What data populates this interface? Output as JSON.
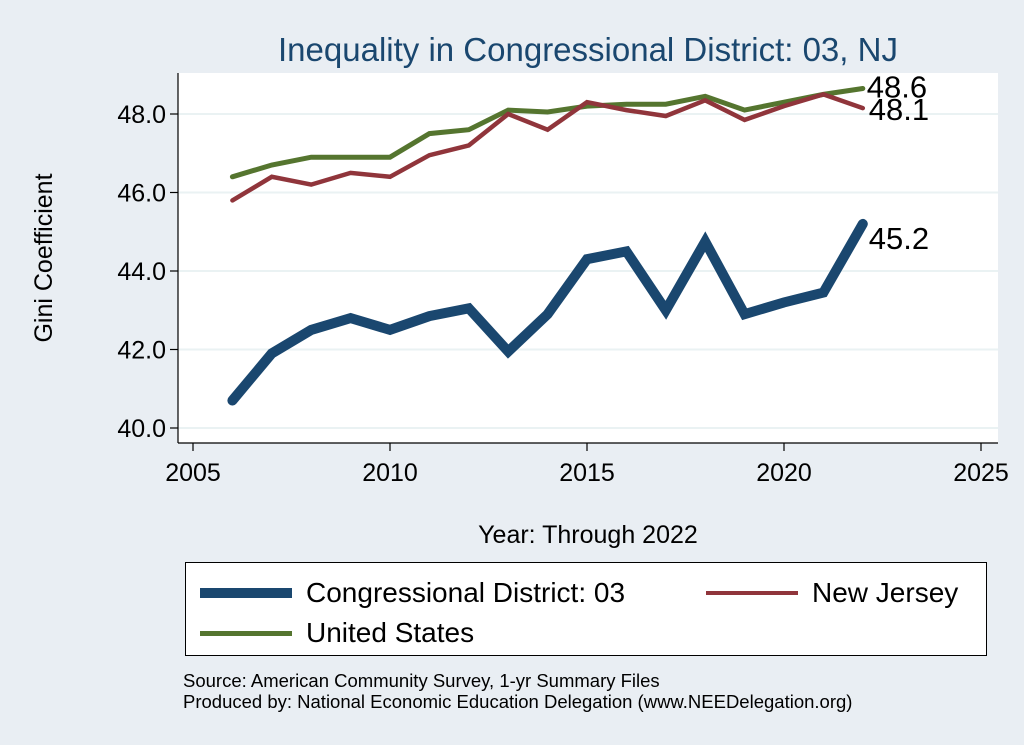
{
  "chart_data": {
    "type": "line",
    "title": "Inequality in Congressional District:  03, NJ",
    "xlabel": "Year: Through 2022",
    "ylabel": "Gini Coefficient",
    "xlim": [
      2005,
      2025
    ],
    "ylim": [
      39.8,
      49.0
    ],
    "xticks": [
      2005,
      2010,
      2015,
      2020,
      2025
    ],
    "yticks": [
      40.0,
      42.0,
      44.0,
      46.0,
      48.0
    ],
    "ytick_labels": [
      "40.0",
      "42.0",
      "44.0",
      "46.0",
      "48.0"
    ],
    "grid": "horizontal",
    "legend_position": "bottom",
    "x": [
      2006,
      2007,
      2008,
      2009,
      2010,
      2011,
      2012,
      2013,
      2014,
      2015,
      2016,
      2017,
      2018,
      2019,
      2020,
      2021,
      2022
    ],
    "series": [
      {
        "name": "Congressional District:  03",
        "color": "#1a476f",
        "values": [
          40.7,
          41.9,
          42.5,
          42.8,
          42.5,
          42.85,
          43.05,
          41.95,
          42.9,
          44.3,
          44.5,
          43.0,
          44.75,
          42.9,
          43.2,
          43.45,
          45.2
        ],
        "end_label": "45.2"
      },
      {
        "name": "New Jersey",
        "color": "#90353b",
        "values": [
          45.8,
          46.4,
          46.2,
          46.5,
          46.4,
          46.95,
          47.2,
          48.0,
          47.6,
          48.3,
          48.1,
          47.95,
          48.35,
          47.85,
          48.2,
          48.5,
          48.15
        ],
        "end_label": "48.1"
      },
      {
        "name": "United States",
        "color": "#55752f",
        "values": [
          46.4,
          46.7,
          46.9,
          46.9,
          46.9,
          47.5,
          47.6,
          48.1,
          48.05,
          48.2,
          48.25,
          48.25,
          48.45,
          48.1,
          48.3,
          48.5,
          48.65
        ],
        "end_label": "48.6"
      }
    ]
  },
  "legend": {
    "items": [
      {
        "label": "Congressional District:  03",
        "color": "#1a476f"
      },
      {
        "label": "New Jersey",
        "color": "#90353b"
      },
      {
        "label": "United States",
        "color": "#55752f"
      }
    ]
  },
  "notes": {
    "source": "Source: American Community Survey, 1-yr Summary Files",
    "produced_by": "Produced by: National Economic Education Delegation (www.NEEDelegation.org)"
  }
}
